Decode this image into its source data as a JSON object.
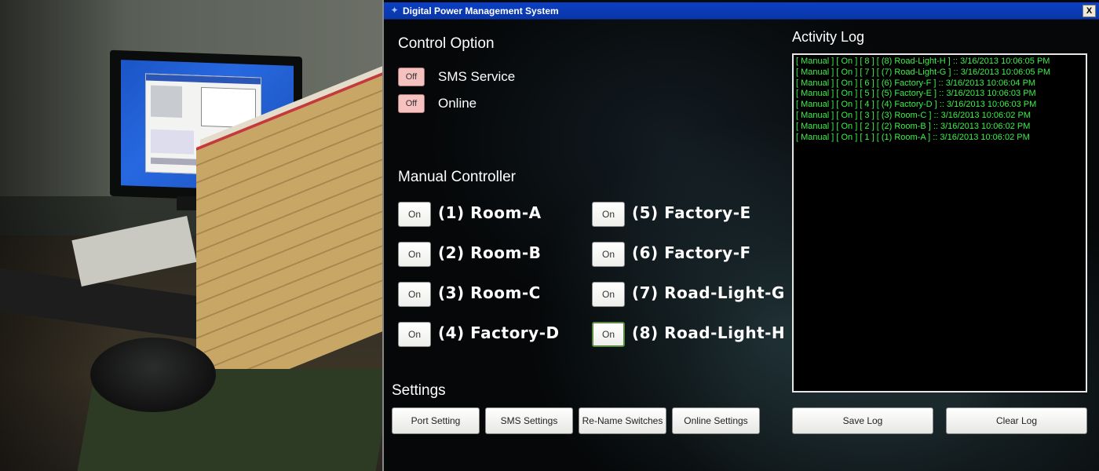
{
  "window": {
    "title": "Digital Power Management System",
    "close_glyph": "X",
    "icon_glyph": "✦"
  },
  "control_option": {
    "title": "Control Option",
    "toggles": [
      {
        "state": "Off",
        "label": "SMS Service"
      },
      {
        "state": "Off",
        "label": "Online"
      }
    ]
  },
  "manual_controller": {
    "title": "Manual Controller",
    "switches": [
      {
        "state": "On",
        "label": "(1) Room-A"
      },
      {
        "state": "On",
        "label": "(2) Room-B"
      },
      {
        "state": "On",
        "label": "(3) Room-C"
      },
      {
        "state": "On",
        "label": "(4) Factory-D"
      },
      {
        "state": "On",
        "label": "(5) Factory-E"
      },
      {
        "state": "On",
        "label": "(6) Factory-F"
      },
      {
        "state": "On",
        "label": "(7) Road-Light-G"
      },
      {
        "state": "On",
        "label": "(8) Road-Light-H"
      }
    ]
  },
  "activity_log": {
    "title": "Activity Log",
    "lines": [
      "[ Manual ] [ On ] [ 8 ] [ (8) Road-Light-H ] :: 3/16/2013 10:06:05 PM",
      "[ Manual ] [ On ] [ 7 ] [ (7) Road-Light-G ] :: 3/16/2013 10:06:05 PM",
      "[ Manual ] [ On ] [ 6 ] [ (6) Factory-F ] :: 3/16/2013 10:06:04 PM",
      "[ Manual ] [ On ] [ 5 ] [ (5) Factory-E ] :: 3/16/2013 10:06:03 PM",
      "[ Manual ] [ On ] [ 4 ] [ (4) Factory-D ] :: 3/16/2013 10:06:03 PM",
      "[ Manual ] [ On ] [ 3 ] [ (3) Room-C ] :: 3/16/2013 10:06:02 PM",
      "[ Manual ] [ On ] [ 2 ] [ (2) Room-B ] :: 3/16/2013 10:06:02 PM",
      "[ Manual ] [ On ] [ 1 ] [ (1) Room-A ] :: 3/16/2013 10:06:02 PM"
    ],
    "save_label": "Save Log",
    "clear_label": "Clear Log"
  },
  "settings": {
    "title": "Settings",
    "buttons": [
      "Port Setting",
      "SMS Settings",
      "Re-Name Switches",
      "Online Settings"
    ]
  },
  "colors": {
    "log_text": "#3cf04a",
    "titlebar": "#0b3fc4",
    "off_toggle": "#f5c2c0"
  }
}
